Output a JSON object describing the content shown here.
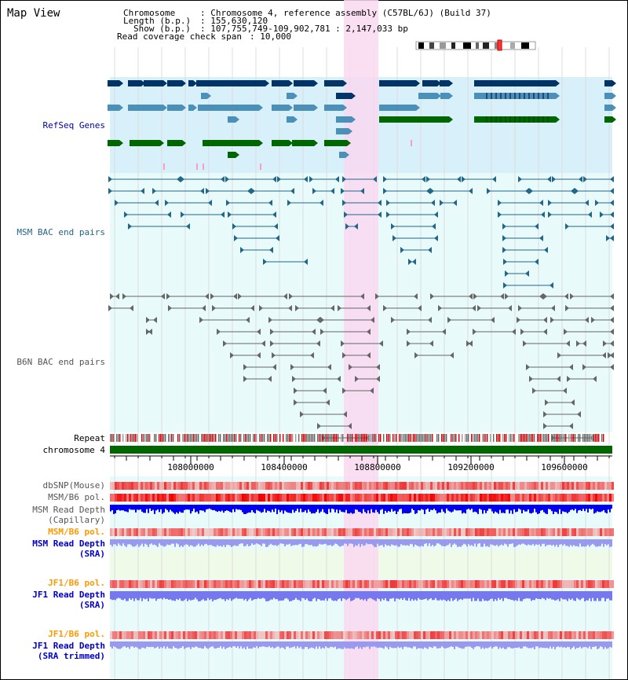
{
  "view": {
    "title": "Map View"
  },
  "info": {
    "chromosome_label": "Chromosome",
    "chromosome_value": ": Chromosome 4, reference assembly (C57BL/6J) (Build 37)",
    "length_label": "Length (b.p.)",
    "length_value": ": 155,630,120",
    "show_label": "Show (b.p.)",
    "show_value": ": 107,755,749-109,902,781 : 2,147,033 bp",
    "coverage_label": "Read coverage check span",
    "coverage_value": ": 10,000"
  },
  "tracks": {
    "refseq": {
      "label": "RefSeq Genes",
      "color": "#0000aa"
    },
    "msm_bac": {
      "label": "MSM BAC end pairs",
      "color": "#226688"
    },
    "b6n_bac": {
      "label": "B6N BAC end pairs",
      "color": "#555555"
    },
    "repeat": {
      "label": "Repeat"
    },
    "chromosome": {
      "label": "chromosome 4"
    },
    "dbsnp": {
      "label": "dbSNP(Mouse)",
      "color": "#555555"
    },
    "msm_b6_pol_1": {
      "label": "MSM/B6 pol.",
      "color": "#555555"
    },
    "msm_depth_cap": {
      "label1": "MSM Read Depth",
      "label2": "(Capillary)",
      "color": "#555555"
    },
    "msm_b6_pol_2": {
      "label": "MSM/B6 pol.",
      "color": "#ff9900"
    },
    "msm_depth_sra": {
      "label1": "MSM Read Depth",
      "label2": "(SRA)",
      "color": "#0000cc"
    },
    "jf1_b6_pol_1": {
      "label": "JF1/B6 pol.",
      "color": "#ff9900"
    },
    "jf1_depth_sra": {
      "label1": "JF1 Read Depth",
      "label2": "(SRA)",
      "color": "#0000cc"
    },
    "jf1_b6_pol_2": {
      "label": "JF1/B6 pol.",
      "color": "#ff9900"
    },
    "jf1_depth_trim": {
      "label1": "JF1 Read Depth",
      "label2": "(SRA trimmed)",
      "color": "#0000cc"
    }
  },
  "axis": {
    "ticks": [
      "108000000",
      "108400000",
      "108800000",
      "109200000",
      "109600000"
    ]
  },
  "colors": {
    "highlight": "#f9d8f0",
    "refseq_bg": "#d8f0fa",
    "track_bg": "#e8fafa",
    "gene_dark": "#003366",
    "gene_mid": "#4a90b8",
    "gene_green": "#006600",
    "chromosome": "#006600"
  }
}
